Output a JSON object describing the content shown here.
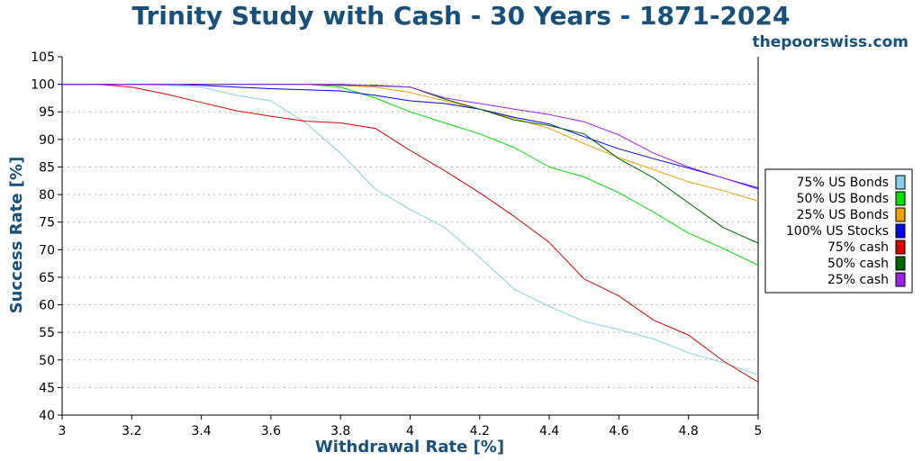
{
  "chart_data": {
    "type": "line",
    "title": "Trinity Study with Cash - 30 Years - 1871-2024",
    "site": "thepoorswiss.com",
    "xlabel": "Withdrawal Rate [%]",
    "ylabel": "Success Rate [%]",
    "xlim": [
      3,
      5
    ],
    "ylim": [
      40,
      105
    ],
    "x_ticks": [
      "3",
      "3.2",
      "3.4",
      "3.6",
      "3.8",
      "4",
      "4.2",
      "4.4",
      "4.6",
      "4.8",
      "5"
    ],
    "y_ticks": [
      "40",
      "45",
      "50",
      "55",
      "60",
      "65",
      "70",
      "75",
      "80",
      "85",
      "90",
      "95",
      "100",
      "105"
    ],
    "grid": "horizontal",
    "legend_position": "right",
    "x": [
      3,
      3.1,
      3.2,
      3.3,
      3.4,
      3.5,
      3.6,
      3.7,
      3.8,
      3.9,
      4,
      4.1,
      4.2,
      4.3,
      4.4,
      4.5,
      4.6,
      4.7,
      4.8,
      4.9,
      5
    ],
    "series": [
      {
        "name": "75% US Bonds",
        "color": "#87ceeb",
        "values": [
          100,
          100,
          100,
          99.8,
          99.5,
          98,
          97,
          93,
          87.5,
          81,
          77.3,
          74,
          68.6,
          62.8,
          59.7,
          57,
          55.5,
          53.8,
          51.3,
          49.5,
          47.3
        ]
      },
      {
        "name": "50% US Bonds",
        "color": "#00e000",
        "values": [
          100,
          100,
          100,
          100,
          100,
          100,
          100,
          100,
          99.5,
          97.5,
          95,
          93,
          91,
          88.5,
          85,
          83.2,
          80.3,
          76.8,
          73,
          70.2,
          67.2
        ]
      },
      {
        "name": "25% US Bonds",
        "color": "#f0a000",
        "values": [
          100,
          100,
          100,
          100,
          100,
          100,
          100,
          100,
          99.8,
          99.5,
          98.5,
          97,
          95.5,
          93.8,
          92,
          89.2,
          86.7,
          84.5,
          82.3,
          80.7,
          78.8
        ]
      },
      {
        "name": "100% US Stocks",
        "color": "#0000ff",
        "values": [
          100,
          100,
          100,
          100,
          99.8,
          99.5,
          99.2,
          99,
          98.8,
          98,
          97,
          96.5,
          95.5,
          94,
          92.8,
          90.5,
          88.3,
          86.5,
          84.8,
          83,
          81.2
        ]
      },
      {
        "name": "75% cash",
        "color": "#e00000",
        "values": [
          100,
          100,
          99.5,
          98.2,
          96.7,
          95.2,
          94.2,
          93.3,
          93,
          92,
          88,
          84.3,
          80.3,
          76,
          71.3,
          64.7,
          61.6,
          57.2,
          54.5,
          49.8,
          46
        ]
      },
      {
        "name": "50% cash",
        "color": "#006400",
        "values": [
          100,
          100,
          100,
          100,
          100,
          100,
          100,
          100,
          99.8,
          99.8,
          99.5,
          97.3,
          95.5,
          93.5,
          92.5,
          91,
          86.5,
          83,
          78.5,
          74,
          71.2
        ]
      },
      {
        "name": "25% cash",
        "color": "#a020f0",
        "values": [
          100,
          100,
          100,
          100,
          100,
          100,
          100,
          100,
          100,
          99.7,
          99.5,
          97.5,
          96.5,
          95.5,
          94.5,
          93.2,
          90.8,
          87.5,
          85,
          83,
          81
        ]
      }
    ]
  }
}
